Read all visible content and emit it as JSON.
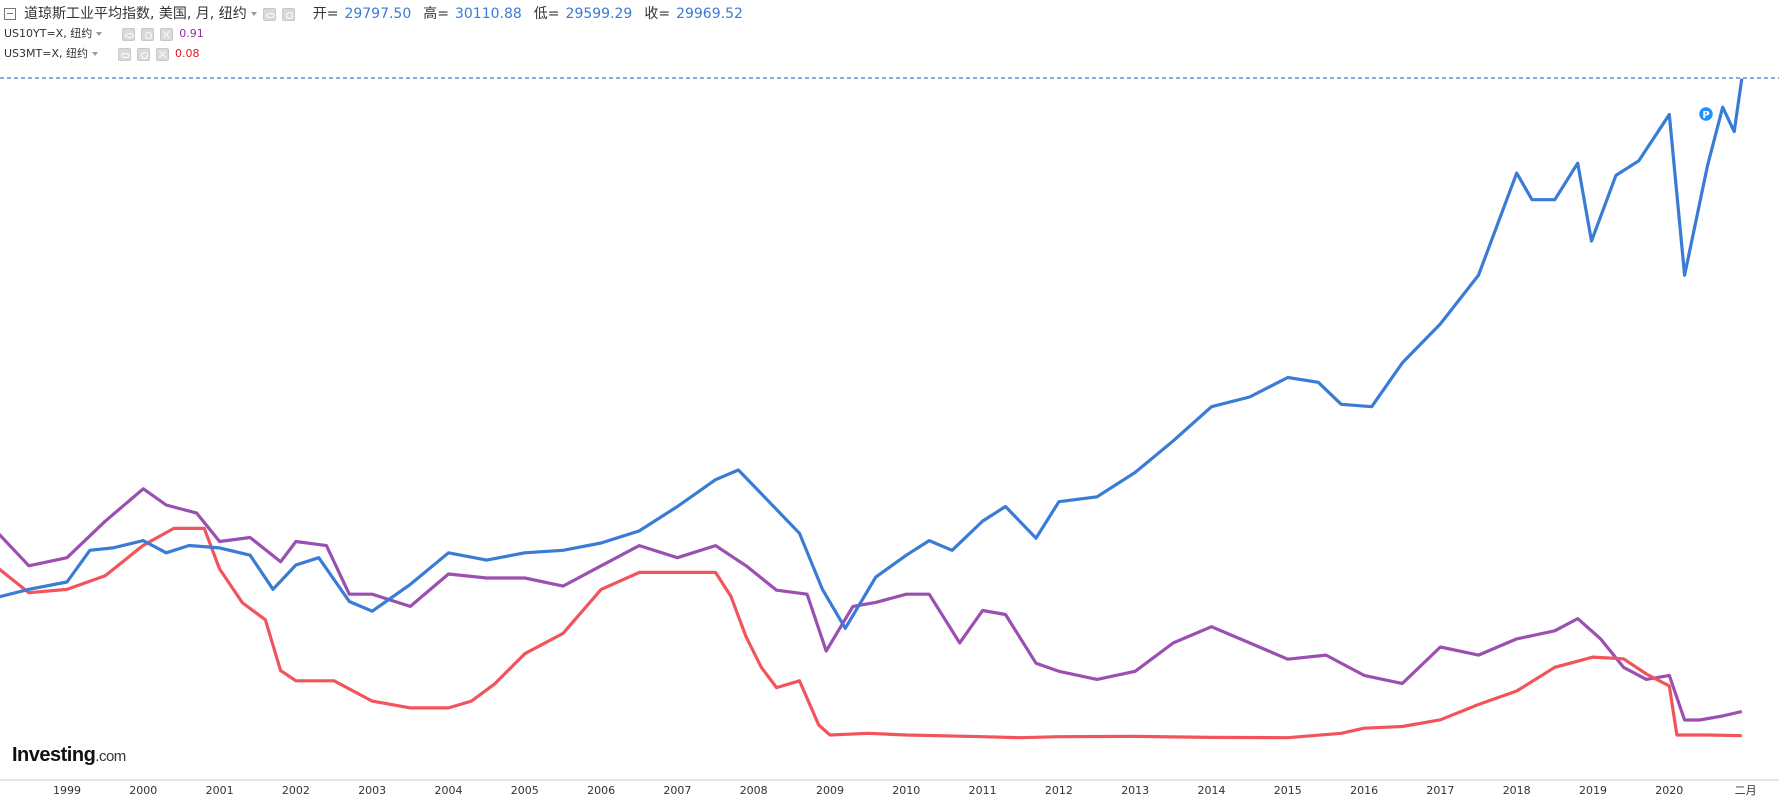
{
  "header": {
    "title": "道琼斯工业平均指数, 美国, 月, 纽约",
    "open_label": "开=",
    "open": "29797.50",
    "high_label": "高=",
    "high": "30110.88",
    "low_label": "低=",
    "low": "29599.29",
    "close_label": "收=",
    "close": "29969.52"
  },
  "studies": [
    {
      "label": "US10YT=X, 纽约",
      "value": "0.91",
      "color": "#8a2f9e"
    },
    {
      "label": "US3MT=X, 纽约",
      "value": "0.08",
      "color": "#e5141d"
    }
  ],
  "logo": {
    "brand": "Investing",
    "suffix": ".com"
  },
  "chart_data": {
    "type": "line",
    "x_ticks": [
      "1999",
      "2000",
      "2001",
      "2002",
      "2003",
      "2004",
      "2005",
      "2006",
      "2007",
      "2008",
      "2009",
      "2010",
      "2011",
      "2012",
      "2013",
      "2014",
      "2015",
      "2016",
      "2017",
      "2018",
      "2019",
      "2020",
      "二月"
    ],
    "series": [
      {
        "name": "道琼斯工业平均指数",
        "color": "#3a7bd5",
        "x": [
          1998.0,
          1998.5,
          1999.0,
          1999.3,
          1999.6,
          2000.0,
          2000.3,
          2000.6,
          2001.0,
          2001.4,
          2001.7,
          2002.0,
          2002.3,
          2002.7,
          2003.0,
          2003.5,
          2004.0,
          2004.5,
          2005.0,
          2005.5,
          2006.0,
          2006.5,
          2007.0,
          2007.5,
          2007.8,
          2008.2,
          2008.6,
          2008.9,
          2009.2,
          2009.6,
          2010.0,
          2010.3,
          2010.6,
          2011.0,
          2011.3,
          2011.7,
          2012.0,
          2012.5,
          2013.0,
          2013.5,
          2014.0,
          2014.5,
          2015.0,
          2015.4,
          2015.7,
          2016.1,
          2016.5,
          2017.0,
          2017.5,
          2018.0,
          2018.2,
          2018.5,
          2018.8,
          2018.98,
          2019.3,
          2019.6,
          2020.0,
          2020.2,
          2020.5,
          2020.7,
          2020.85,
          2020.95
        ],
        "values": [
          8600,
          9000,
          9300,
          10600,
          10700,
          11000,
          10500,
          10800,
          10700,
          10400,
          9000,
          10000,
          10300,
          8500,
          8100,
          9200,
          10500,
          10200,
          10500,
          10600,
          10900,
          11400,
          12400,
          13500,
          13900,
          12600,
          11300,
          9000,
          7400,
          9500,
          10400,
          11000,
          10600,
          11800,
          12400,
          11100,
          12600,
          12800,
          13800,
          15100,
          16500,
          16900,
          17700,
          17500,
          16600,
          16500,
          18300,
          19900,
          21900,
          26100,
          25000,
          25000,
          26500,
          23300,
          26000,
          26600,
          28500,
          21900,
          26400,
          28800,
          27800,
          29970
        ]
      },
      {
        "name": "US10YT=X",
        "color": "#9b4fb0",
        "x": [
          1998.0,
          1998.5,
          1999.0,
          1999.5,
          2000.0,
          2000.3,
          2000.7,
          2001.0,
          2001.4,
          2001.8,
          2002.0,
          2002.4,
          2002.7,
          2003.0,
          2003.5,
          2004.0,
          2004.5,
          2005.0,
          2005.5,
          2006.0,
          2006.5,
          2007.0,
          2007.5,
          2007.9,
          2008.3,
          2008.7,
          2008.95,
          2009.3,
          2009.6,
          2010.0,
          2010.3,
          2010.7,
          2011.0,
          2011.3,
          2011.7,
          2012.0,
          2012.5,
          2013.0,
          2013.5,
          2014.0,
          2014.5,
          2015.0,
          2015.5,
          2016.0,
          2016.5,
          2017.0,
          2017.5,
          2018.0,
          2018.5,
          2018.8,
          2019.1,
          2019.4,
          2019.7,
          2020.0,
          2020.2,
          2020.4,
          2020.7,
          2020.95
        ],
        "values": [
          5.5,
          4.5,
          4.7,
          5.6,
          6.4,
          6.0,
          5.8,
          5.1,
          5.2,
          4.6,
          5.1,
          5.0,
          3.8,
          3.8,
          3.5,
          4.3,
          4.2,
          4.2,
          4.0,
          4.5,
          5.0,
          4.7,
          5.0,
          4.5,
          3.9,
          3.8,
          2.4,
          3.5,
          3.6,
          3.8,
          3.8,
          2.6,
          3.4,
          3.3,
          2.1,
          1.9,
          1.7,
          1.9,
          2.6,
          3.0,
          2.6,
          2.2,
          2.3,
          1.8,
          1.6,
          2.5,
          2.3,
          2.7,
          2.9,
          3.2,
          2.7,
          2.0,
          1.7,
          1.8,
          0.7,
          0.7,
          0.8,
          0.91
        ]
      },
      {
        "name": "US3MT=X",
        "color": "#f2545b",
        "x": [
          1998.0,
          1998.5,
          1999.0,
          1999.5,
          2000.0,
          2000.4,
          2000.8,
          2001.0,
          2001.3,
          2001.6,
          2001.8,
          2002.0,
          2002.5,
          2003.0,
          2003.5,
          2004.0,
          2004.3,
          2004.6,
          2005.0,
          2005.5,
          2006.0,
          2006.5,
          2007.0,
          2007.5,
          2007.7,
          2007.9,
          2008.1,
          2008.3,
          2008.6,
          2008.85,
          2009.0,
          2009.5,
          2010.0,
          2011.0,
          2011.5,
          2012.0,
          2013.0,
          2014.0,
          2015.0,
          2015.7,
          2016.0,
          2016.5,
          2017.0,
          2017.5,
          2018.0,
          2018.5,
          2019.0,
          2019.4,
          2019.7,
          2020.0,
          2020.1,
          2020.2,
          2020.5,
          2020.95
        ],
        "values": [
          5.2,
          4.3,
          4.4,
          4.8,
          5.7,
          6.2,
          6.2,
          5.0,
          4.0,
          3.5,
          2.0,
          1.7,
          1.7,
          1.1,
          0.9,
          0.9,
          1.1,
          1.6,
          2.5,
          3.1,
          4.4,
          4.9,
          4.9,
          4.9,
          4.2,
          3.0,
          2.1,
          1.5,
          1.7,
          0.4,
          0.1,
          0.15,
          0.1,
          0.05,
          0.02,
          0.05,
          0.06,
          0.03,
          0.02,
          0.15,
          0.3,
          0.35,
          0.55,
          1.0,
          1.4,
          2.1,
          2.4,
          2.35,
          1.9,
          1.55,
          0.1,
          0.1,
          0.1,
          0.08
        ]
      }
    ]
  }
}
